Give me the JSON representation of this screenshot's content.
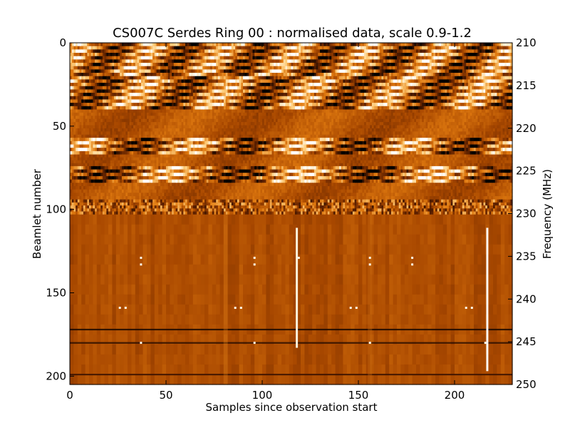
{
  "chart_data": {
    "type": "heatmap",
    "title": "CS007C Serdes Ring 00 : normalised data, scale 0.9-1.2",
    "xlabel": "Samples since observation start",
    "ylabel": "Beamlet number",
    "y2label": "Frequency (MHz)",
    "xlim": [
      0,
      230
    ],
    "ylim": [
      205,
      0
    ],
    "y2lim": [
      250,
      210
    ],
    "color_scale": [
      0.9,
      1.2
    ],
    "colormap": [
      "#000000",
      "#5a1f00",
      "#a84800",
      "#e07a10",
      "#ffd080",
      "#ffffff"
    ],
    "grid": false,
    "x_ticks": [
      "0",
      "50",
      "100",
      "150",
      "200"
    ],
    "x_tick_values": [
      0,
      50,
      100,
      150,
      200
    ],
    "y_ticks": [
      "0",
      "50",
      "100",
      "150",
      "200"
    ],
    "y_tick_values": [
      0,
      50,
      100,
      150,
      200
    ],
    "y2_ticks": [
      "210",
      "215",
      "220",
      "225",
      "230",
      "235",
      "240",
      "245",
      "250"
    ],
    "y2_tick_values": [
      210,
      215,
      220,
      225,
      230,
      235,
      240,
      245,
      250
    ],
    "bands": [
      {
        "beamlets": [
          0,
          20
        ],
        "texture": "strong"
      },
      {
        "beamlets": [
          20,
          40
        ],
        "texture": "strong"
      },
      {
        "beamlets": [
          40,
          57
        ],
        "texture": "weak"
      },
      {
        "beamlets": [
          57,
          67
        ],
        "texture": "strong"
      },
      {
        "beamlets": [
          67,
          74
        ],
        "texture": "weak"
      },
      {
        "beamlets": [
          74,
          84
        ],
        "texture": "strong"
      },
      {
        "beamlets": [
          84,
          94
        ],
        "texture": "weak"
      },
      {
        "beamlets": [
          94,
          103
        ],
        "texture": "noisy"
      },
      {
        "beamlets": [
          103,
          205
        ],
        "texture": "smooth"
      }
    ],
    "vertical_features": [
      {
        "sample": 118,
        "beamlets": [
          111,
          183
        ],
        "color": "#fffbe8"
      },
      {
        "sample": 217,
        "beamlets": [
          111,
          197
        ],
        "color": "#ffffff"
      },
      {
        "sample": 81,
        "beamlets": [
          103,
          205
        ],
        "color": "#d77818"
      },
      {
        "sample": 156,
        "beamlets": [
          103,
          205
        ],
        "color": "#c96a10"
      }
    ],
    "horizontal_features": [
      {
        "beamlet": 172,
        "color": "#1a0800"
      },
      {
        "beamlet": 180,
        "color": "#2a0e00"
      },
      {
        "beamlet": 199,
        "color": "#3a1200"
      }
    ],
    "spots": [
      {
        "sample": 37,
        "beamlet": 129
      },
      {
        "sample": 37,
        "beamlet": 133
      },
      {
        "sample": 96,
        "beamlet": 129
      },
      {
        "sample": 96,
        "beamlet": 133
      },
      {
        "sample": 156,
        "beamlet": 129
      },
      {
        "sample": 156,
        "beamlet": 133
      },
      {
        "sample": 178,
        "beamlet": 129
      },
      {
        "sample": 178,
        "beamlet": 133
      },
      {
        "sample": 119,
        "beamlet": 129
      },
      {
        "sample": 26,
        "beamlet": 159
      },
      {
        "sample": 29,
        "beamlet": 159
      },
      {
        "sample": 86,
        "beamlet": 159
      },
      {
        "sample": 89,
        "beamlet": 159
      },
      {
        "sample": 146,
        "beamlet": 159
      },
      {
        "sample": 149,
        "beamlet": 159
      },
      {
        "sample": 206,
        "beamlet": 159
      },
      {
        "sample": 209,
        "beamlet": 159
      },
      {
        "sample": 37,
        "beamlet": 180
      },
      {
        "sample": 96,
        "beamlet": 180
      },
      {
        "sample": 156,
        "beamlet": 180
      },
      {
        "sample": 216,
        "beamlet": 180
      }
    ]
  }
}
